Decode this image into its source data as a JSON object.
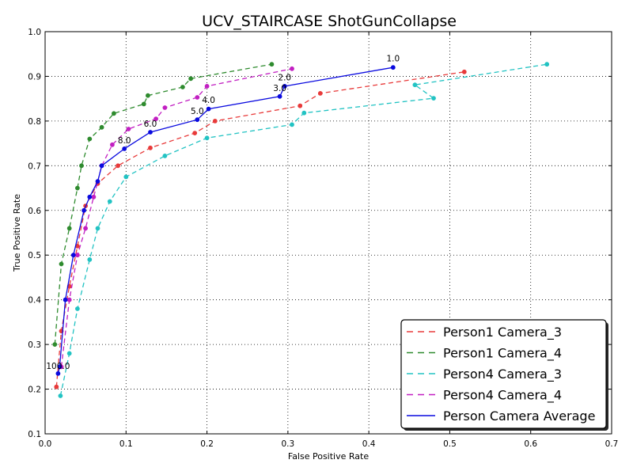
{
  "chart_data": {
    "type": "line",
    "title": "UCV_STAIRCASE ShotGunCollapse",
    "xlabel": "False Positive Rate",
    "ylabel": "True Positive Rate",
    "xlim": [
      0.0,
      0.7
    ],
    "ylim": [
      0.1,
      1.0
    ],
    "xticks": [
      "0.0",
      "0.1",
      "0.2",
      "0.3",
      "0.4",
      "0.5",
      "0.6",
      "0.7"
    ],
    "yticks": [
      "0.1",
      "0.2",
      "0.3",
      "0.4",
      "0.5",
      "0.6",
      "0.7",
      "0.8",
      "0.9",
      "1.0"
    ],
    "grid": true,
    "legend_position": "bottom-right",
    "series": [
      {
        "name": "Person1 Camera_3",
        "color": "#e83a3a",
        "style": "dashed",
        "x": [
          0.014,
          0.02,
          0.03,
          0.04,
          0.05,
          0.065,
          0.09,
          0.13,
          0.185,
          0.21,
          0.315,
          0.34,
          0.518
        ],
        "y": [
          0.205,
          0.33,
          0.43,
          0.52,
          0.61,
          0.66,
          0.7,
          0.74,
          0.773,
          0.8,
          0.834,
          0.862,
          0.91
        ]
      },
      {
        "name": "Person1 Camera_4",
        "color": "#2e8b2e",
        "style": "dashed",
        "x": [
          0.012,
          0.02,
          0.03,
          0.04,
          0.045,
          0.055,
          0.07,
          0.085,
          0.122,
          0.127,
          0.17,
          0.18,
          0.28
        ],
        "y": [
          0.3,
          0.48,
          0.56,
          0.65,
          0.7,
          0.76,
          0.786,
          0.817,
          0.838,
          0.857,
          0.876,
          0.895,
          0.927
        ]
      },
      {
        "name": "Person4 Camera_3",
        "color": "#22c3c3",
        "style": "dashed",
        "x": [
          0.019,
          0.03,
          0.04,
          0.055,
          0.065,
          0.08,
          0.1,
          0.148,
          0.2,
          0.305,
          0.32,
          0.48,
          0.457,
          0.62
        ],
        "y": [
          0.185,
          0.28,
          0.38,
          0.49,
          0.56,
          0.62,
          0.675,
          0.722,
          0.762,
          0.792,
          0.818,
          0.851,
          0.881,
          0.927
        ]
      },
      {
        "name": "Person4 Camera_4",
        "color": "#c21fc2",
        "style": "dashed",
        "x": [
          0.02,
          0.03,
          0.04,
          0.05,
          0.06,
          0.07,
          0.083,
          0.103,
          0.137,
          0.148,
          0.188,
          0.2,
          0.305
        ],
        "y": [
          0.25,
          0.4,
          0.5,
          0.56,
          0.63,
          0.7,
          0.747,
          0.782,
          0.805,
          0.83,
          0.853,
          0.878,
          0.917
        ]
      },
      {
        "name": "Person Camera Average",
        "color": "#0a0adf",
        "style": "solid",
        "x": [
          0.016,
          0.018,
          0.025,
          0.035,
          0.048,
          0.055,
          0.065,
          0.07,
          0.098,
          0.13,
          0.188,
          0.202,
          0.29,
          0.296,
          0.43
        ],
        "y": [
          0.235,
          0.25,
          0.4,
          0.5,
          0.6,
          0.63,
          0.665,
          0.7,
          0.738,
          0.775,
          0.803,
          0.827,
          0.855,
          0.878,
          0.92
        ]
      }
    ],
    "annotations": [
      {
        "text": "100.0",
        "x": 0.016,
        "y": 0.24
      },
      {
        "text": "8.0",
        "x": 0.098,
        "y": 0.745
      },
      {
        "text": "6.0",
        "x": 0.13,
        "y": 0.782
      },
      {
        "text": "5.0",
        "x": 0.188,
        "y": 0.81
      },
      {
        "text": "4.0",
        "x": 0.202,
        "y": 0.835
      },
      {
        "text": "3.0",
        "x": 0.29,
        "y": 0.862
      },
      {
        "text": "2.0",
        "x": 0.296,
        "y": 0.886
      },
      {
        "text": "1.0",
        "x": 0.43,
        "y": 0.928
      }
    ]
  }
}
